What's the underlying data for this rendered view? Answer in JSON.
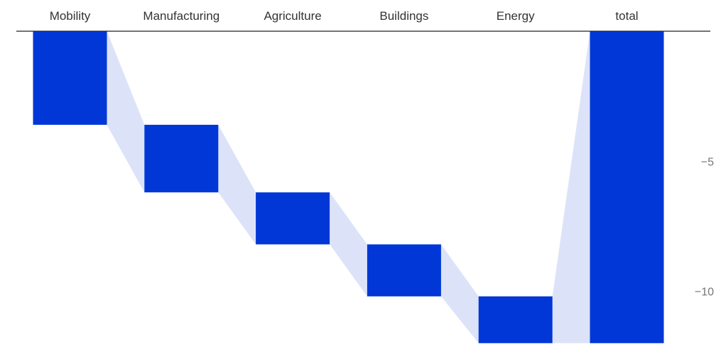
{
  "chart_data": {
    "type": "waterfall",
    "categories": [
      "Mobility",
      "Manufacturing",
      "Agriculture",
      "Buildings",
      "Energy",
      "total"
    ],
    "values": [
      -3.6,
      -2.6,
      -2.0,
      -2.0,
      -1.8,
      -12.0
    ],
    "is_total": [
      false,
      false,
      false,
      false,
      false,
      true
    ],
    "y_axis": {
      "position": "right",
      "ticks": [
        -5,
        -10
      ],
      "tick_labels": [
        "−5",
        "−10"
      ],
      "range": [
        -12.0,
        0
      ]
    },
    "x_axis": {
      "position": "top"
    },
    "grid": false,
    "colors": {
      "bar": "#0037d6",
      "connector": "#dce3f9",
      "baseline": "#222222",
      "label": "#333333",
      "tick_label": "#757575"
    }
  }
}
